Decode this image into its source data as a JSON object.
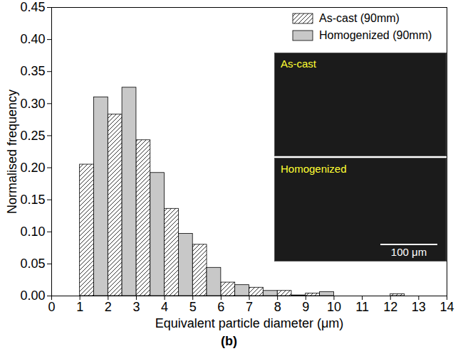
{
  "chart_data": {
    "type": "bar",
    "title": "(b)",
    "x_label": "Equivalent particle diameter (μm)",
    "y_label": "Normalised frequency",
    "bins": [
      1,
      2,
      3,
      4,
      5,
      6,
      7,
      8,
      9,
      10,
      11,
      12,
      13
    ],
    "series": [
      {
        "name": "As-cast (90mm)",
        "color": "#ffffff",
        "values": [
          0.205,
          0.283,
          0.243,
          0.136,
          0.08,
          0.021,
          0.013,
          0.008,
          0.004,
          0,
          0,
          0.003
        ]
      },
      {
        "name": "Homogenized (90mm)",
        "color": "#c8c8c8",
        "values": [
          0.31,
          0.325,
          0.192,
          0.097,
          0.044,
          0.017,
          0.008,
          0.001,
          0.006,
          0,
          0,
          0
        ]
      }
    ],
    "xlim": [
      0,
      14
    ],
    "xticks": [
      0,
      1,
      2,
      3,
      4,
      5,
      6,
      7,
      8,
      9,
      10,
      11,
      12,
      13,
      14
    ],
    "ylim": [
      0,
      0.45
    ],
    "yticks": [
      {
        "value": 0,
        "label": "0.00"
      },
      0.05,
      {
        "value": 0.1,
        "label": "0.10"
      },
      0.15,
      {
        "value": 0.2,
        "label": "0.20"
      },
      0.25,
      {
        "value": 0.3,
        "label": "0.30"
      },
      0.35,
      {
        "value": 0.4,
        "label": "0.40"
      },
      0.45
    ],
    "legend": "top-right",
    "grid": false,
    "annotations": [
      "As-cast",
      "Homogenized",
      "100 μm"
    ]
  }
}
